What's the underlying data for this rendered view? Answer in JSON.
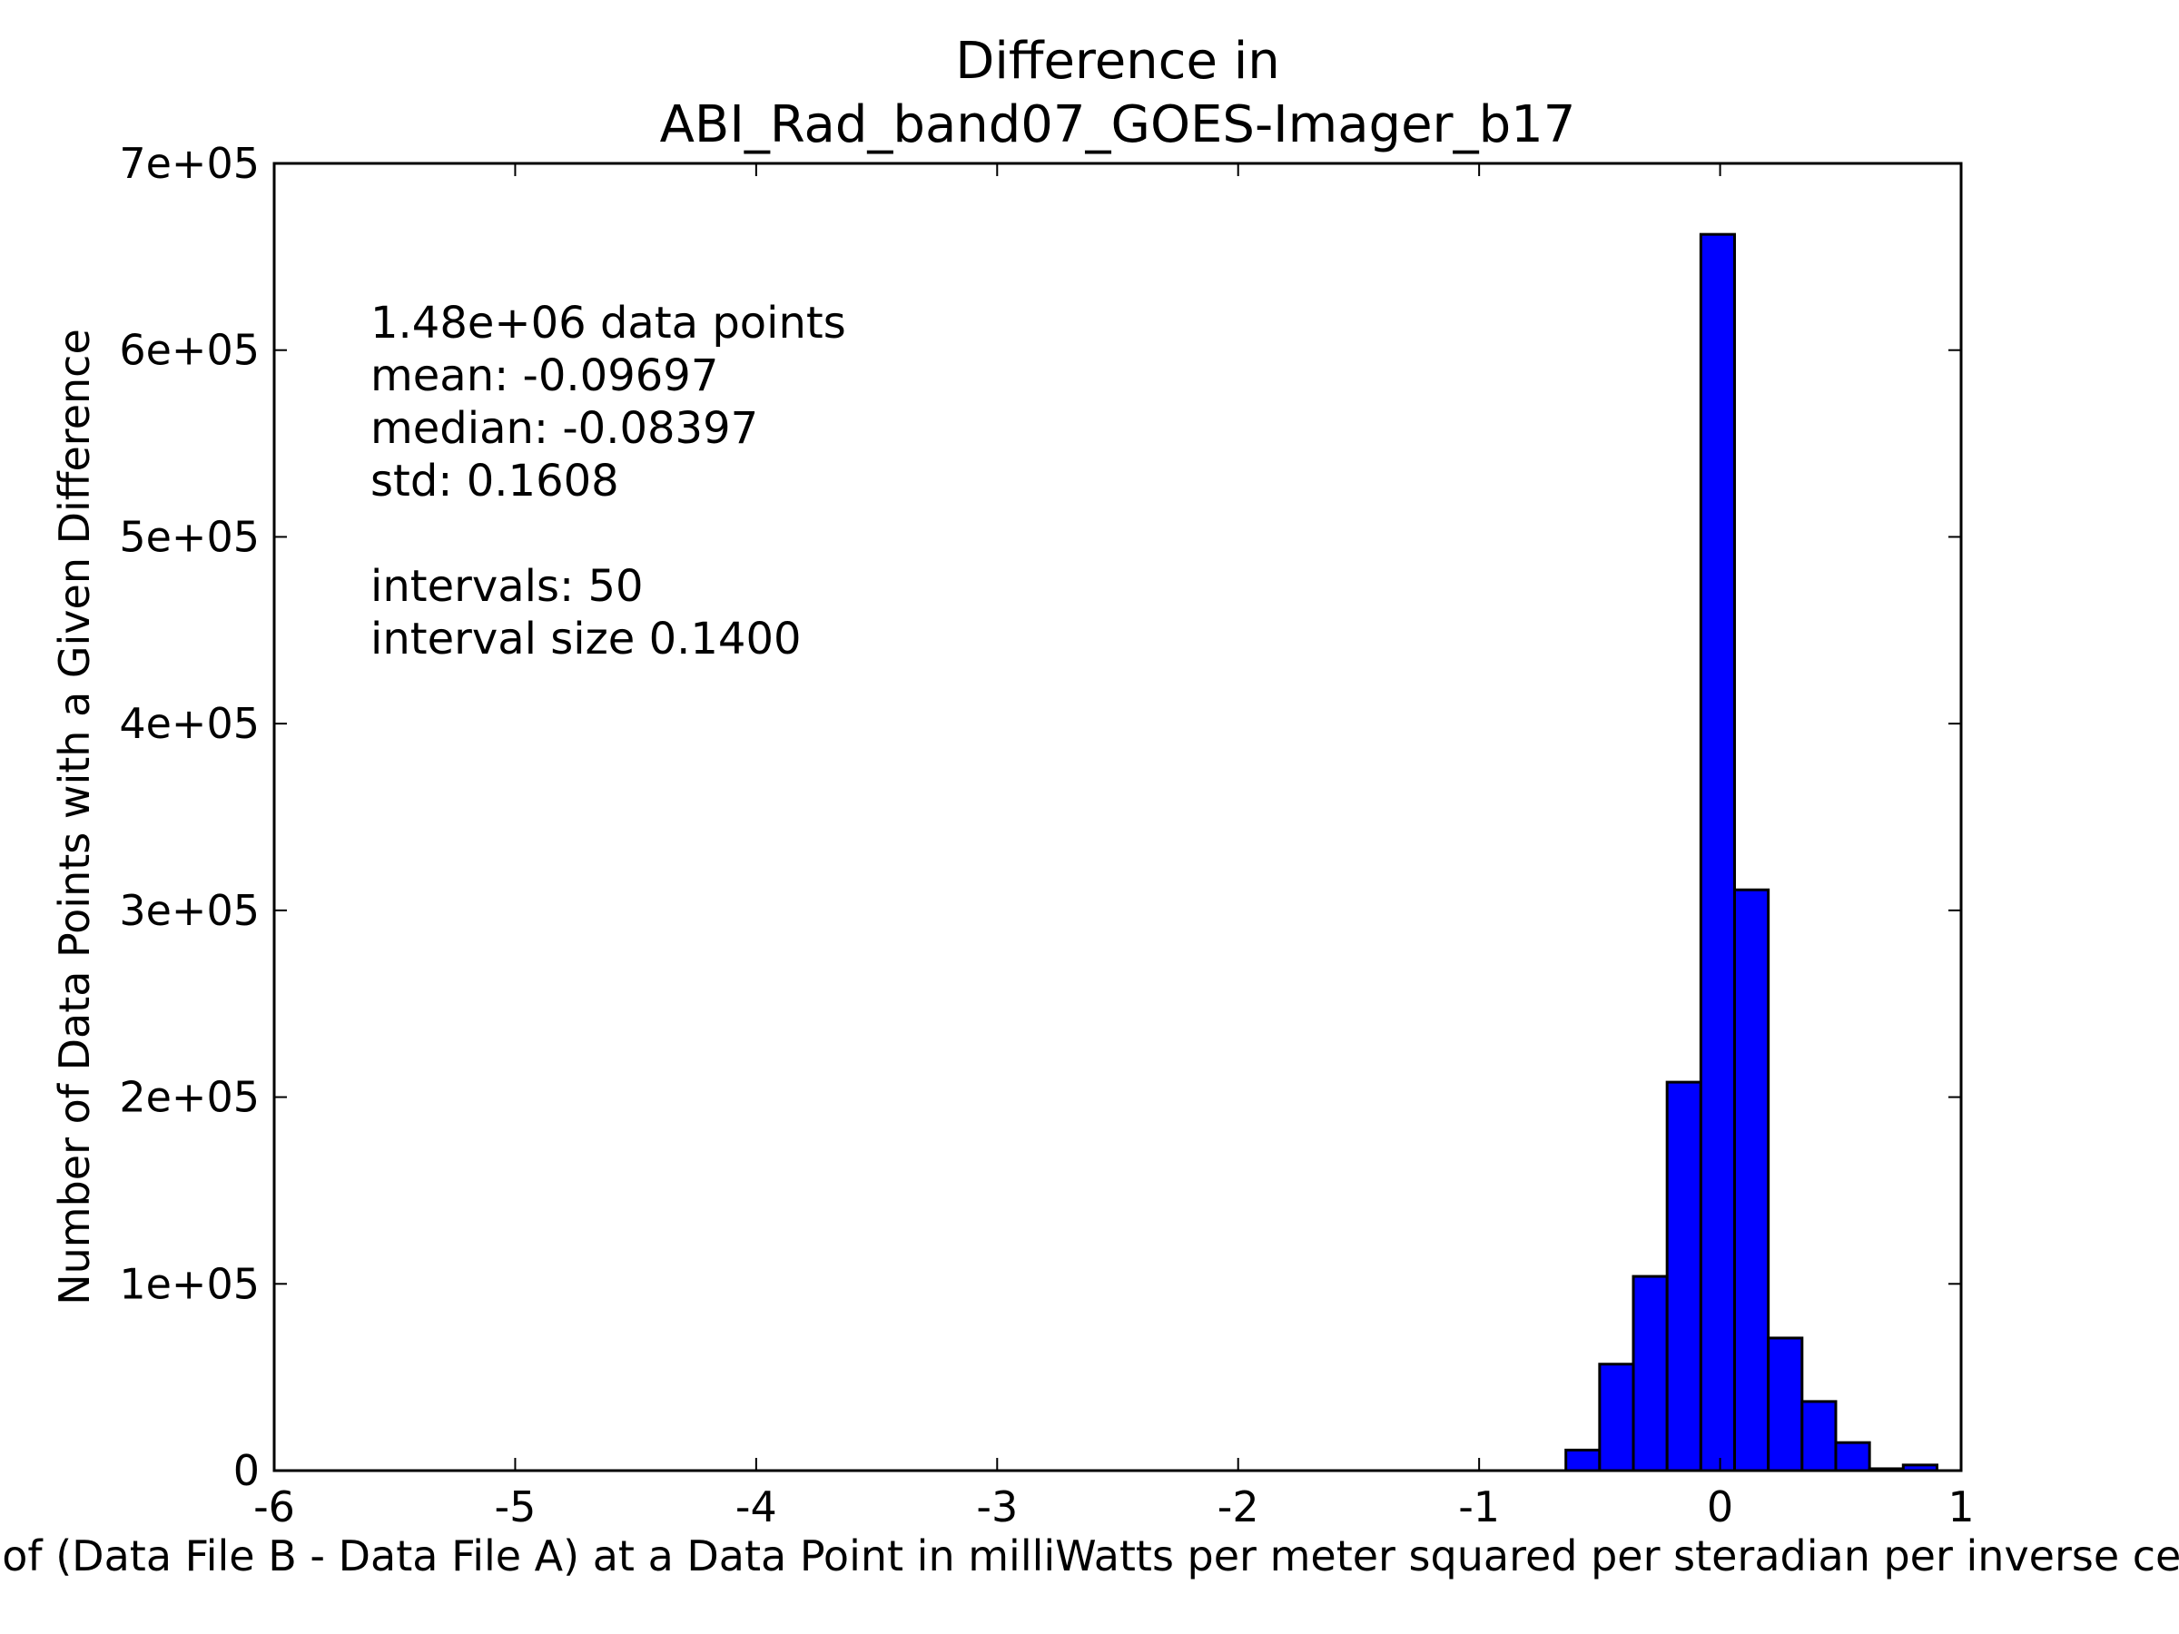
{
  "chart_data": {
    "type": "bar",
    "title_lines": [
      "Difference in",
      "ABI_Rad_band07_GOES-Imager_b17"
    ],
    "xlabel": "Value of (Data File B - Data File A) at a Data Point in milliWatts per meter squared per steradian per inverse centimeter",
    "ylabel": "Number of Data Points with a Given Difference",
    "xlim": [
      -6,
      1
    ],
    "ylim": [
      0,
      700000
    ],
    "x_ticks": [
      -6,
      -5,
      -4,
      -3,
      -2,
      -1,
      0,
      1
    ],
    "x_tick_labels": [
      "-6",
      "-5",
      "-4",
      "-3",
      "-2",
      "-1",
      "0",
      "1"
    ],
    "y_ticks": [
      0,
      100000,
      200000,
      300000,
      400000,
      500000,
      600000,
      700000
    ],
    "y_tick_labels": [
      "0",
      "1e+05",
      "2e+05",
      "3e+05",
      "4e+05",
      "5e+05",
      "6e+05",
      "7e+05"
    ],
    "bar_color": "#0000ff",
    "bin_width": 0.14,
    "bins": [
      {
        "left": -0.64,
        "count": 11000
      },
      {
        "left": -0.5,
        "count": 57000
      },
      {
        "left": -0.36,
        "count": 104000
      },
      {
        "left": -0.22,
        "count": 208000
      },
      {
        "left": -0.08,
        "count": 662000
      },
      {
        "left": 0.06,
        "count": 311000
      },
      {
        "left": 0.2,
        "count": 71000
      },
      {
        "left": 0.34,
        "count": 37000
      },
      {
        "left": 0.48,
        "count": 15000
      },
      {
        "left": 0.62,
        "count": 1000
      },
      {
        "left": 0.76,
        "count": 3000
      }
    ],
    "stats_lines": [
      "1.48e+06 data points",
      "mean: -0.09697",
      "median: -0.08397",
      "std: 0.1608",
      "",
      "intervals: 50",
      "interval size 0.1400"
    ]
  }
}
